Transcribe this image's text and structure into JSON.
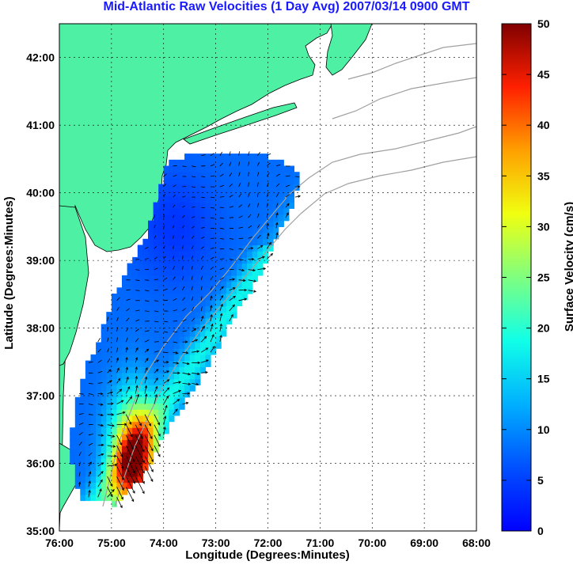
{
  "chart_data": {
    "type": "heatmap",
    "title": "Mid-Atlantic Raw Velocities (1 Day Avg) 2007/03/14 0900 GMT",
    "xlabel": "Longitude (Degrees:Minutes)",
    "ylabel": "Latitude (Degrees:Minutes)",
    "colorbar_label": "Surface Velocity (cm/s)",
    "x_ticks": [
      "76:00",
      "75:00",
      "74:00",
      "73:00",
      "72:00",
      "71:00",
      "70:00",
      "69:00",
      "68:00"
    ],
    "y_ticks": [
      "35:00",
      "36:00",
      "37:00",
      "38:00",
      "39:00",
      "40:00",
      "41:00",
      "42:00"
    ],
    "xlim": [
      -76,
      -68
    ],
    "ylim": [
      35,
      42.5
    ],
    "colorbar_ticks": [
      "0",
      "5",
      "10",
      "15",
      "20",
      "25",
      "30",
      "35",
      "40",
      "45",
      "50"
    ],
    "clim": [
      0,
      50
    ],
    "grid": true,
    "colormap": "jet",
    "colors": {
      "land": "#4ef0a4",
      "title": "#1a1aff",
      "contour": "#a0a0a0",
      "arrow": "#000000"
    }
  }
}
